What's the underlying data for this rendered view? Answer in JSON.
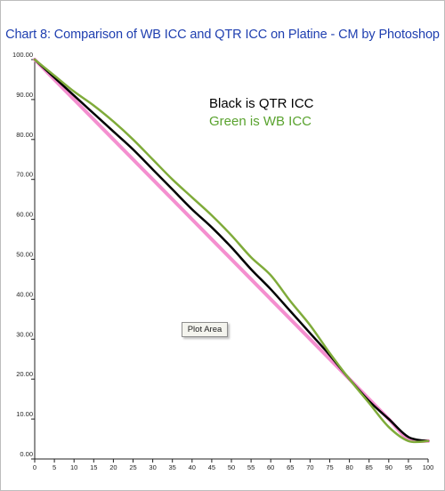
{
  "chart_data": {
    "type": "line",
    "title": "Chart 8:  Comparison of WB ICC and QTR ICC on Platine - CM by Photoshop",
    "xlabel": "",
    "ylabel": "",
    "xlim": [
      0,
      100
    ],
    "ylim": [
      0,
      100
    ],
    "x_ticks": [
      "0",
      "5",
      "10",
      "15",
      "20",
      "25",
      "30",
      "35",
      "40",
      "45",
      "50",
      "55",
      "60",
      "65",
      "70",
      "75",
      "80",
      "85",
      "90",
      "95",
      "100"
    ],
    "y_ticks": [
      "0.00",
      "10.00",
      "20.00",
      "30.00",
      "40.00",
      "50.00",
      "60.00",
      "70.00",
      "80.00",
      "90.00",
      "100.00"
    ],
    "grid": false,
    "x": [
      0,
      5,
      10,
      15,
      20,
      25,
      30,
      35,
      40,
      45,
      50,
      55,
      60,
      65,
      70,
      75,
      80,
      85,
      90,
      95,
      100
    ],
    "series": [
      {
        "color": "#f48fcf",
        "values": [
          100,
          95,
          90,
          85,
          80,
          75,
          70,
          65,
          60,
          55,
          50,
          45,
          40,
          35,
          30,
          25,
          20,
          15,
          10,
          5,
          4.5
        ]
      },
      {
        "color": "#000000",
        "values": [
          100,
          95.5,
          91,
          86.5,
          82,
          77.5,
          72.5,
          67.5,
          62.5,
          58,
          53,
          47.5,
          42.5,
          37,
          31.5,
          26,
          20,
          14.5,
          10,
          5.5,
          4.5
        ]
      },
      {
        "color": "#7fab3a",
        "values": [
          100,
          96,
          92,
          88.5,
          84.5,
          80,
          75,
          70,
          65.5,
          61,
          56,
          50.5,
          46,
          39.5,
          33.5,
          26.5,
          20,
          14,
          8,
          4.5,
          4.5
        ]
      }
    ],
    "annotations": [
      {
        "text": "Black is QTR ICC",
        "color": "#000000"
      },
      {
        "text": "Green is WB ICC",
        "color": "#5aa32f"
      }
    ]
  },
  "tooltip": {
    "label": "Plot Area"
  }
}
